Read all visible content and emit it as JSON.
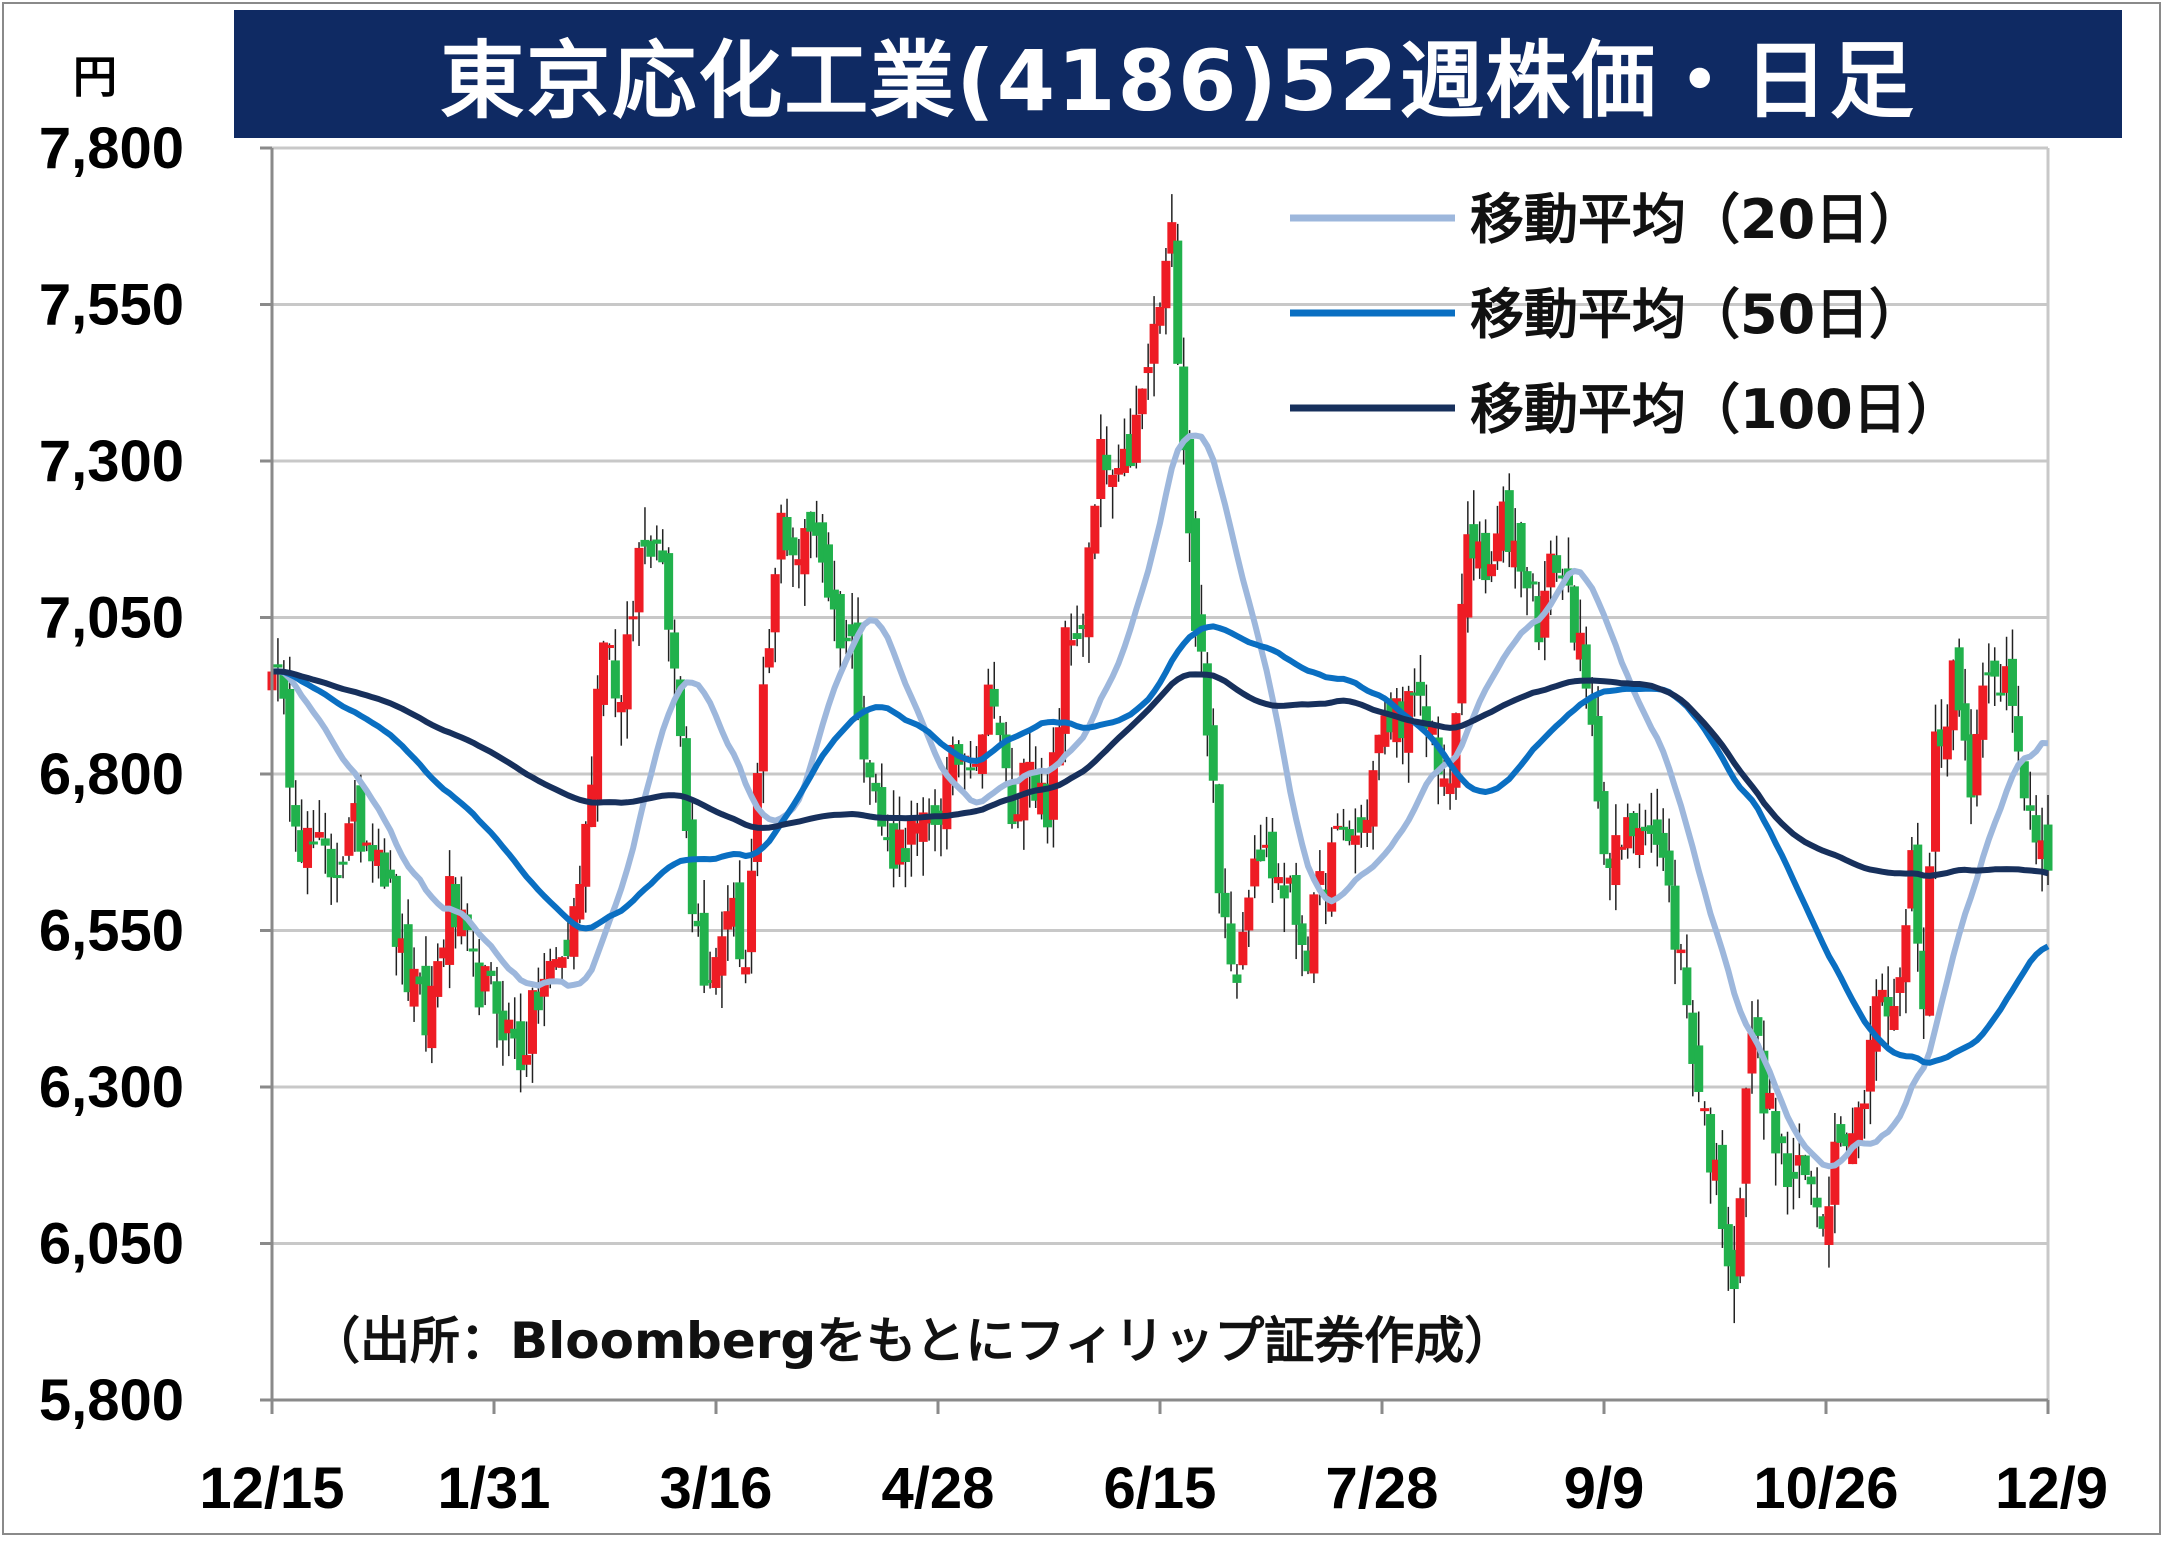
{
  "chart_data": {
    "type": "candlestick",
    "title": "東京応化工業(4186)52週株価・日足",
    "y_unit": "円",
    "ylim": [
      5800,
      7800
    ],
    "y_ticks": [
      "7,800",
      "7,550",
      "7,300",
      "7,050",
      "6,800",
      "6,550",
      "6,300",
      "6,050",
      "5,800"
    ],
    "x_ticks": [
      "12/15",
      "1/31",
      "3/16",
      "4/28",
      "6/15",
      "7/28",
      "9/9",
      "10/26",
      "12/9"
    ],
    "grid": true,
    "colors": {
      "up": "#ee1c24",
      "down": "#21b14c",
      "ma20": "#9db7dc",
      "ma50": "#0a6fc2",
      "ma100": "#17305c",
      "title_bg": "#0f2a63"
    },
    "legend": {
      "position": "top-right",
      "ma20": "移動平均（20日）",
      "ma50": "移動平均（50日）",
      "ma100": "移動平均（100日）"
    },
    "source_note": "（出所：Bloombergをもとにフィリップ証券作成）",
    "anchors": [
      [
        0,
        7000
      ],
      [
        5,
        6700
      ],
      [
        10,
        6650
      ],
      [
        14,
        6710
      ],
      [
        18,
        6700
      ],
      [
        22,
        6500
      ],
      [
        26,
        6400
      ],
      [
        30,
        6600
      ],
      [
        34,
        6480
      ],
      [
        38,
        6430
      ],
      [
        42,
        6350
      ],
      [
        46,
        6470
      ],
      [
        50,
        6520
      ],
      [
        53,
        6700
      ],
      [
        56,
        7050
      ],
      [
        59,
        6900
      ],
      [
        62,
        7150
      ],
      [
        65,
        7200
      ],
      [
        68,
        7000
      ],
      [
        71,
        6600
      ],
      [
        74,
        6450
      ],
      [
        77,
        6600
      ],
      [
        80,
        6500
      ],
      [
        83,
        6900
      ],
      [
        86,
        7200
      ],
      [
        89,
        7150
      ],
      [
        92,
        7200
      ],
      [
        95,
        7050
      ],
      [
        98,
        7000
      ],
      [
        101,
        6800
      ],
      [
        104,
        6680
      ],
      [
        107,
        6700
      ],
      [
        110,
        6700
      ],
      [
        113,
        6750
      ],
      [
        116,
        6830
      ],
      [
        119,
        6850
      ],
      [
        122,
        6950
      ],
      [
        125,
        6700
      ],
      [
        128,
        6850
      ],
      [
        131,
        6700
      ],
      [
        134,
        7000
      ],
      [
        137,
        7050
      ],
      [
        140,
        7300
      ],
      [
        143,
        7250
      ],
      [
        146,
        7350
      ],
      [
        149,
        7500
      ],
      [
        152,
        7650
      ],
      [
        154,
        7350
      ],
      [
        156,
        7050
      ],
      [
        158,
        6900
      ],
      [
        160,
        6600
      ],
      [
        163,
        6500
      ],
      [
        166,
        6700
      ],
      [
        169,
        6650
      ],
      [
        172,
        6600
      ],
      [
        175,
        6520
      ],
      [
        178,
        6650
      ],
      [
        181,
        6700
      ],
      [
        184,
        6700
      ],
      [
        187,
        6850
      ],
      [
        190,
        6900
      ],
      [
        193,
        6900
      ],
      [
        196,
        6870
      ],
      [
        199,
        6750
      ],
      [
        202,
        7200
      ],
      [
        205,
        7100
      ],
      [
        208,
        7200
      ],
      [
        211,
        7150
      ],
      [
        214,
        7050
      ],
      [
        217,
        7150
      ],
      [
        220,
        7050
      ],
      [
        223,
        6850
      ],
      [
        226,
        6650
      ],
      [
        229,
        6700
      ],
      [
        232,
        6750
      ],
      [
        235,
        6650
      ],
      [
        238,
        6500
      ],
      [
        241,
        6300
      ],
      [
        244,
        6150
      ],
      [
        247,
        6000
      ],
      [
        250,
        6400
      ],
      [
        253,
        6250
      ],
      [
        256,
        6150
      ],
      [
        259,
        6150
      ],
      [
        262,
        6100
      ],
      [
        265,
        6250
      ],
      [
        268,
        6250
      ],
      [
        271,
        6450
      ],
      [
        274,
        6400
      ],
      [
        277,
        6650
      ],
      [
        279,
        6450
      ],
      [
        281,
        6850
      ],
      [
        284,
        6950
      ],
      [
        287,
        6800
      ],
      [
        290,
        7000
      ],
      [
        293,
        6950
      ],
      [
        296,
        6750
      ],
      [
        299,
        6700
      ],
      [
        300,
        6680
      ]
    ]
  }
}
